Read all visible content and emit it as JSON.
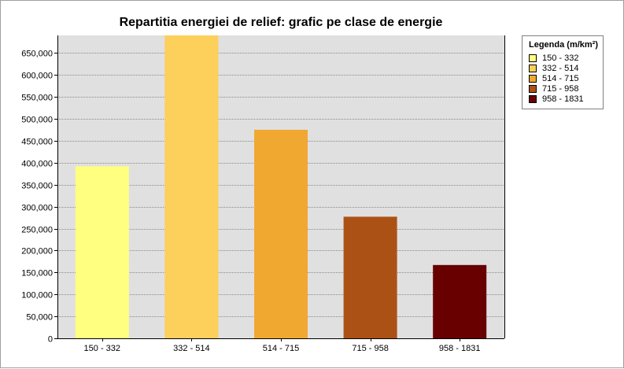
{
  "chart_data": {
    "type": "bar",
    "title": "Repartitia energiei de relief: grafic pe clase de energie",
    "xlabel": "",
    "ylabel": "",
    "categories": [
      "150 - 332",
      "332 - 514",
      "514 - 715",
      "715 - 958",
      "958 - 1831"
    ],
    "values": [
      392000,
      690000,
      475000,
      277000,
      167000
    ],
    "colors": [
      "#ffff80",
      "#fdcf5b",
      "#f0a830",
      "#ac5116",
      "#680000"
    ],
    "ylim": [
      0,
      690000
    ],
    "yticks": [
      0,
      50000,
      100000,
      150000,
      200000,
      250000,
      300000,
      350000,
      400000,
      450000,
      500000,
      550000,
      600000,
      650000
    ],
    "ytick_labels": [
      "0",
      "50,000",
      "100,000",
      "150,000",
      "200,000",
      "250,000",
      "300,000",
      "350,000",
      "400,000",
      "450,000",
      "500,000",
      "550,000",
      "600,000",
      "650,000"
    ],
    "grid": true,
    "background": "#e0e0e0",
    "legend": {
      "title": "Legenda (m/km²)",
      "placement": "right",
      "entries": [
        "150 - 332",
        "332 - 514",
        "514 - 715",
        "715 - 958",
        "958 - 1831"
      ]
    }
  }
}
